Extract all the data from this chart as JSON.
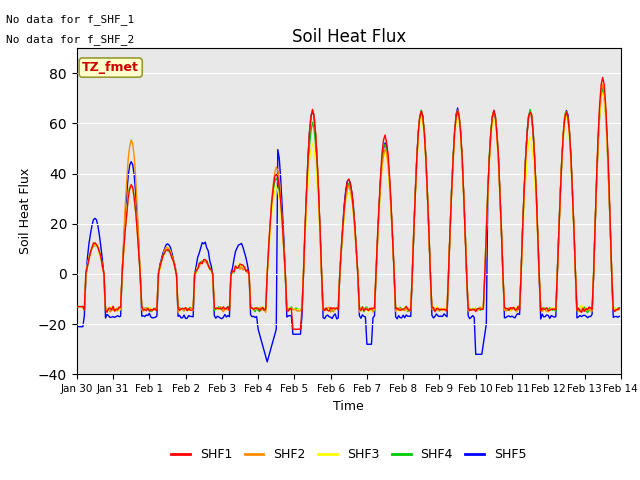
{
  "title": "Soil Heat Flux",
  "xlabel": "Time",
  "ylabel": "Soil Heat Flux",
  "ylim": [
    -40,
    90
  ],
  "yticks": [
    -40,
    -20,
    0,
    20,
    40,
    60,
    80
  ],
  "colors": {
    "SHF1": "#ff0000",
    "SHF2": "#ff8c00",
    "SHF3": "#ffff00",
    "SHF4": "#00cc00",
    "SHF5": "#0000ff"
  },
  "annotation_text1": "No data for f_SHF_1",
  "annotation_text2": "No data for f_SHF_2",
  "tag_text": "TZ_fmet",
  "tag_color": "#ffffcc",
  "tag_border_color": "#999933",
  "tag_text_color": "#cc0000",
  "background_color": "#ffffff",
  "plot_bg_color": "#e8e8e8",
  "xtick_labels": [
    "Jan 30",
    "Jan 31",
    "Feb 1",
    "Feb 2",
    "Feb 3",
    "Feb 4",
    "Feb 5",
    "Feb 6",
    "Feb 7",
    "Feb 8",
    "Feb 9",
    "Feb 10",
    "Feb 11",
    "Feb 12",
    "Feb 13",
    "Feb 14"
  ],
  "xtick_positions": [
    0,
    24,
    48,
    72,
    96,
    120,
    144,
    168,
    192,
    216,
    240,
    264,
    288,
    312,
    336,
    360
  ]
}
